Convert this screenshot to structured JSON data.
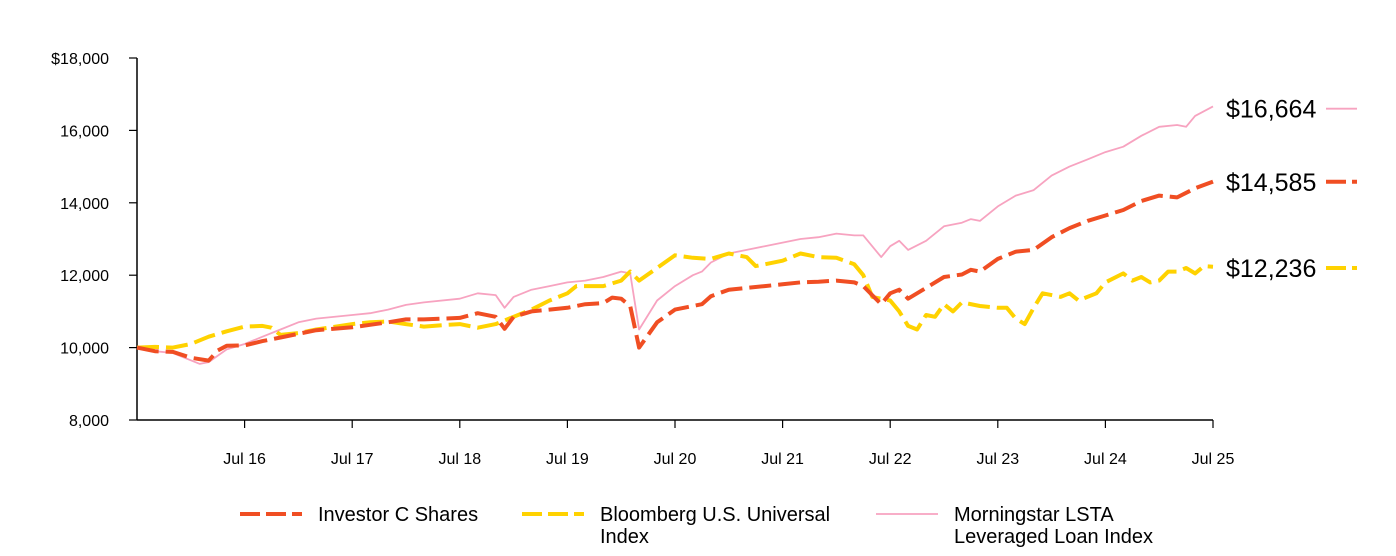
{
  "chart_data": {
    "type": "line",
    "title": "",
    "xlabel": "",
    "ylabel": "",
    "ylim": [
      8000,
      18000
    ],
    "xlim": [
      2015.5833,
      2025.5833
    ],
    "grid": false,
    "y_ticks": [
      {
        "value": 18000,
        "label": "$18,000"
      },
      {
        "value": 16000,
        "label": "16,000"
      },
      {
        "value": 14000,
        "label": "14,000"
      },
      {
        "value": 12000,
        "label": "12,000"
      },
      {
        "value": 10000,
        "label": "10,000"
      },
      {
        "value": 8000,
        "label": "8,000"
      }
    ],
    "x_ticks": [
      {
        "value": 2016.5833,
        "label": "Jul 16"
      },
      {
        "value": 2017.5833,
        "label": "Jul 17"
      },
      {
        "value": 2018.5833,
        "label": "Jul 18"
      },
      {
        "value": 2019.5833,
        "label": "Jul 19"
      },
      {
        "value": 2020.5833,
        "label": "Jul 20"
      },
      {
        "value": 2021.5833,
        "label": "Jul 21"
      },
      {
        "value": 2022.5833,
        "label": "Jul 22"
      },
      {
        "value": 2023.5833,
        "label": "Jul 23"
      },
      {
        "value": 2024.5833,
        "label": "Jul 24"
      },
      {
        "value": 2025.5833,
        "label": "Jul 25"
      }
    ],
    "series": [
      {
        "name": "Investor C Shares",
        "color": "#f04e23",
        "style": "dashed-thick",
        "end_label": "$14,585",
        "points": [
          [
            2015.5833,
            10000
          ],
          [
            2015.75,
            9900
          ],
          [
            2015.9167,
            9880
          ],
          [
            2016.0833,
            9720
          ],
          [
            2016.25,
            9640
          ],
          [
            2016.3333,
            9920
          ],
          [
            2016.4167,
            10050
          ],
          [
            2016.5833,
            10060
          ],
          [
            2016.75,
            10180
          ],
          [
            2016.9167,
            10280
          ],
          [
            2017.0833,
            10380
          ],
          [
            2017.25,
            10480
          ],
          [
            2017.5833,
            10560
          ],
          [
            2017.75,
            10630
          ],
          [
            2017.9167,
            10700
          ],
          [
            2018.0833,
            10780
          ],
          [
            2018.25,
            10780
          ],
          [
            2018.5833,
            10820
          ],
          [
            2018.75,
            10950
          ],
          [
            2018.9167,
            10850
          ],
          [
            2019.0,
            10520
          ],
          [
            2019.0833,
            10850
          ],
          [
            2019.25,
            11000
          ],
          [
            2019.4167,
            11050
          ],
          [
            2019.5833,
            11100
          ],
          [
            2019.75,
            11200
          ],
          [
            2019.9167,
            11230
          ],
          [
            2020.0,
            11380
          ],
          [
            2020.0833,
            11350
          ],
          [
            2020.1667,
            11150
          ],
          [
            2020.25,
            10000
          ],
          [
            2020.4167,
            10700
          ],
          [
            2020.5833,
            11050
          ],
          [
            2020.75,
            11150
          ],
          [
            2020.8333,
            11200
          ],
          [
            2020.9167,
            11420
          ],
          [
            2021.0833,
            11600
          ],
          [
            2021.25,
            11650
          ],
          [
            2021.4167,
            11700
          ],
          [
            2021.5833,
            11750
          ],
          [
            2021.75,
            11800
          ],
          [
            2021.9167,
            11820
          ],
          [
            2022.0833,
            11850
          ],
          [
            2022.25,
            11800
          ],
          [
            2022.3333,
            11700
          ],
          [
            2022.5,
            11200
          ],
          [
            2022.5833,
            11500
          ],
          [
            2022.6667,
            11600
          ],
          [
            2022.75,
            11350
          ],
          [
            2022.9167,
            11650
          ],
          [
            2023.0833,
            11950
          ],
          [
            2023.25,
            12020
          ],
          [
            2023.3333,
            12150
          ],
          [
            2023.4167,
            12100
          ],
          [
            2023.5833,
            12450
          ],
          [
            2023.75,
            12650
          ],
          [
            2023.9167,
            12700
          ],
          [
            2024.0833,
            13050
          ],
          [
            2024.25,
            13300
          ],
          [
            2024.4167,
            13500
          ],
          [
            2024.5833,
            13650
          ],
          [
            2024.75,
            13800
          ],
          [
            2024.9167,
            14050
          ],
          [
            2025.0833,
            14200
          ],
          [
            2025.25,
            14150
          ],
          [
            2025.4167,
            14400
          ],
          [
            2025.5833,
            14585
          ]
        ]
      },
      {
        "name": "Bloomberg U.S. Universal Index",
        "color": "#ffd200",
        "style": "dashed-thick",
        "end_label": "$12,236",
        "points": [
          [
            2015.5833,
            10000
          ],
          [
            2015.75,
            10020
          ],
          [
            2015.9167,
            10000
          ],
          [
            2016.0833,
            10100
          ],
          [
            2016.25,
            10300
          ],
          [
            2016.4167,
            10450
          ],
          [
            2016.5833,
            10580
          ],
          [
            2016.75,
            10600
          ],
          [
            2016.8333,
            10550
          ],
          [
            2016.9167,
            10350
          ],
          [
            2017.0833,
            10400
          ],
          [
            2017.25,
            10500
          ],
          [
            2017.5833,
            10650
          ],
          [
            2017.75,
            10700
          ],
          [
            2017.9167,
            10720
          ],
          [
            2018.0833,
            10650
          ],
          [
            2018.25,
            10580
          ],
          [
            2018.4167,
            10620
          ],
          [
            2018.5833,
            10650
          ],
          [
            2018.75,
            10550
          ],
          [
            2018.9167,
            10650
          ],
          [
            2019.0833,
            10850
          ],
          [
            2019.25,
            11050
          ],
          [
            2019.4167,
            11300
          ],
          [
            2019.5833,
            11500
          ],
          [
            2019.6667,
            11700
          ],
          [
            2019.9167,
            11700
          ],
          [
            2020.0833,
            11850
          ],
          [
            2020.1667,
            12100
          ],
          [
            2020.25,
            11850
          ],
          [
            2020.4167,
            12200
          ],
          [
            2020.5833,
            12550
          ],
          [
            2020.75,
            12480
          ],
          [
            2020.9167,
            12450
          ],
          [
            2021.0833,
            12600
          ],
          [
            2021.25,
            12500
          ],
          [
            2021.3333,
            12250
          ],
          [
            2021.5833,
            12400
          ],
          [
            2021.75,
            12600
          ],
          [
            2021.9167,
            12500
          ],
          [
            2022.0833,
            12480
          ],
          [
            2022.25,
            12300
          ],
          [
            2022.3333,
            12000
          ],
          [
            2022.4167,
            11400
          ],
          [
            2022.5833,
            11300
          ],
          [
            2022.6667,
            11000
          ],
          [
            2022.75,
            10600
          ],
          [
            2022.8333,
            10500
          ],
          [
            2022.9167,
            10900
          ],
          [
            2023.0,
            10850
          ],
          [
            2023.0833,
            11200
          ],
          [
            2023.1667,
            11000
          ],
          [
            2023.25,
            11250
          ],
          [
            2023.4167,
            11150
          ],
          [
            2023.5833,
            11100
          ],
          [
            2023.6667,
            11100
          ],
          [
            2023.75,
            10800
          ],
          [
            2023.8333,
            10650
          ],
          [
            2023.9167,
            11100
          ],
          [
            2024.0,
            11500
          ],
          [
            2024.1667,
            11400
          ],
          [
            2024.25,
            11500
          ],
          [
            2024.3333,
            11300
          ],
          [
            2024.5,
            11500
          ],
          [
            2024.5833,
            11800
          ],
          [
            2024.75,
            12050
          ],
          [
            2024.8333,
            11850
          ],
          [
            2024.9167,
            11950
          ],
          [
            2025.0,
            11800
          ],
          [
            2025.0833,
            11850
          ],
          [
            2025.1667,
            12100
          ],
          [
            2025.25,
            12100
          ],
          [
            2025.3333,
            12200
          ],
          [
            2025.4167,
            12050
          ],
          [
            2025.5,
            12250
          ],
          [
            2025.5833,
            12236
          ]
        ]
      },
      {
        "name": "Morningstar LSTA Leveraged Loan Index",
        "color": "#f7a3c0",
        "style": "solid-thin",
        "end_label": "$16,664",
        "points": [
          [
            2015.5833,
            10000
          ],
          [
            2015.75,
            9900
          ],
          [
            2015.9167,
            9850
          ],
          [
            2016.0833,
            9650
          ],
          [
            2016.1667,
            9550
          ],
          [
            2016.25,
            9600
          ],
          [
            2016.4167,
            9950
          ],
          [
            2016.5833,
            10100
          ],
          [
            2016.75,
            10300
          ],
          [
            2016.9167,
            10500
          ],
          [
            2017.0833,
            10700
          ],
          [
            2017.25,
            10800
          ],
          [
            2017.5833,
            10900
          ],
          [
            2017.75,
            10950
          ],
          [
            2017.9167,
            11050
          ],
          [
            2018.0833,
            11180
          ],
          [
            2018.25,
            11250
          ],
          [
            2018.5833,
            11350
          ],
          [
            2018.75,
            11500
          ],
          [
            2018.9167,
            11450
          ],
          [
            2019.0,
            11100
          ],
          [
            2019.0833,
            11400
          ],
          [
            2019.25,
            11600
          ],
          [
            2019.4167,
            11700
          ],
          [
            2019.5833,
            11800
          ],
          [
            2019.75,
            11850
          ],
          [
            2019.9167,
            11950
          ],
          [
            2020.0833,
            12100
          ],
          [
            2020.1667,
            12050
          ],
          [
            2020.25,
            10500
          ],
          [
            2020.4167,
            11300
          ],
          [
            2020.5833,
            11700
          ],
          [
            2020.75,
            12000
          ],
          [
            2020.8333,
            12100
          ],
          [
            2020.9167,
            12350
          ],
          [
            2021.0833,
            12600
          ],
          [
            2021.25,
            12700
          ],
          [
            2021.4167,
            12800
          ],
          [
            2021.5833,
            12900
          ],
          [
            2021.75,
            13000
          ],
          [
            2021.9167,
            13050
          ],
          [
            2022.0833,
            13150
          ],
          [
            2022.25,
            13100
          ],
          [
            2022.3333,
            13100
          ],
          [
            2022.5,
            12500
          ],
          [
            2022.5833,
            12800
          ],
          [
            2022.6667,
            12950
          ],
          [
            2022.75,
            12700
          ],
          [
            2022.9167,
            12950
          ],
          [
            2023.0833,
            13350
          ],
          [
            2023.25,
            13450
          ],
          [
            2023.3333,
            13550
          ],
          [
            2023.4167,
            13500
          ],
          [
            2023.5833,
            13900
          ],
          [
            2023.75,
            14200
          ],
          [
            2023.9167,
            14350
          ],
          [
            2024.0833,
            14750
          ],
          [
            2024.25,
            15000
          ],
          [
            2024.4167,
            15200
          ],
          [
            2024.5833,
            15400
          ],
          [
            2024.75,
            15550
          ],
          [
            2024.9167,
            15850
          ],
          [
            2025.0833,
            16100
          ],
          [
            2025.25,
            16150
          ],
          [
            2025.3333,
            16100
          ],
          [
            2025.4167,
            16400
          ],
          [
            2025.5833,
            16664
          ]
        ]
      }
    ],
    "end_labels_order": [
      {
        "series": 2,
        "label_y": 16600
      },
      {
        "series": 0,
        "label_y": 14580
      },
      {
        "series": 1,
        "label_y": 12200
      }
    ],
    "legend": {
      "placement": "bottom",
      "items": [
        {
          "series": 0,
          "lines": [
            "Investor C Shares"
          ]
        },
        {
          "series": 1,
          "lines": [
            "Bloomberg U.S. Universal",
            "Index"
          ]
        },
        {
          "series": 2,
          "lines": [
            "Morningstar LSTA",
            "Leveraged Loan Index"
          ]
        }
      ]
    }
  }
}
